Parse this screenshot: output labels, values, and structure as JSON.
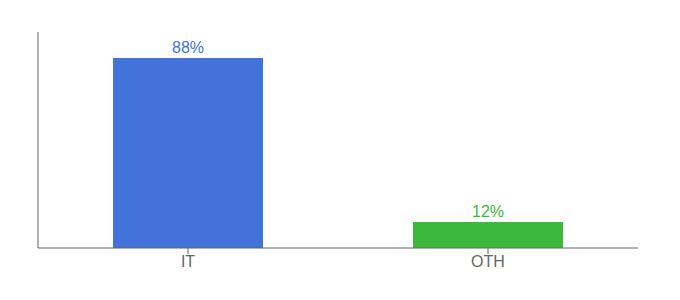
{
  "chart_data": {
    "type": "bar",
    "categories": [
      "IT",
      "OTH"
    ],
    "values": [
      88,
      12
    ],
    "value_labels": [
      "88%",
      "12%"
    ],
    "colors": [
      "#4472db",
      "#3cb93c"
    ],
    "ylim": [
      0,
      100
    ],
    "yticks": [],
    "tick_labels": "x",
    "data_labels": true,
    "grid": false
  }
}
